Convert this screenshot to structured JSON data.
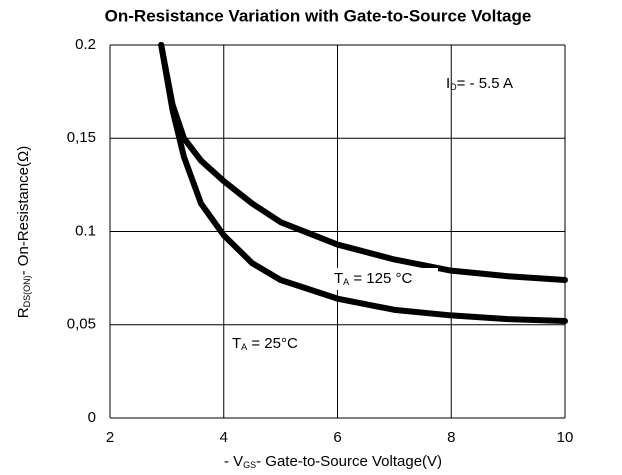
{
  "chart_data": {
    "type": "line",
    "title": "On-Resistance Variation with Gate-to-Source Voltage",
    "x_label": {
      "main": "- V",
      "sub": "GS",
      "rest": "- Gate-to-Source Voltage(V)"
    },
    "y_label": {
      "main": "R",
      "sub": "DS(ON)",
      "rest": "- On-Resistance(Ω)"
    },
    "xlim": [
      2,
      10
    ],
    "ylim": [
      0,
      0.2
    ],
    "xticks": [
      2,
      4,
      6,
      8,
      10
    ],
    "yticks": [
      0,
      {
        "value": 0.05,
        "label": "0,05"
      },
      0.1,
      {
        "value": 0.15,
        "label": "0,15"
      },
      0.2
    ],
    "grid": true,
    "color": "#000000",
    "annotation": {
      "main": "I",
      "sub": "D",
      "rest": "= - 5.5 A"
    },
    "series": [
      {
        "label": {
          "main": "T",
          "sub": "A",
          "rest": " = 25°C"
        },
        "x": [
          2.9,
          3.1,
          3.3,
          3.6,
          4,
          4.5,
          5,
          6,
          7,
          8,
          9,
          10
        ],
        "values": [
          0.2,
          0.165,
          0.14,
          0.115,
          0.098,
          0.083,
          0.074,
          0.064,
          0.058,
          0.055,
          0.053,
          0.052
        ]
      },
      {
        "label": {
          "main": "T",
          "sub": "A",
          "rest": " = 125 °C"
        },
        "x": [
          2.9,
          3.1,
          3.3,
          3.6,
          4,
          4.5,
          5,
          6,
          7,
          8,
          9,
          10
        ],
        "values": [
          0.2,
          0.168,
          0.15,
          0.138,
          0.127,
          0.115,
          0.105,
          0.093,
          0.085,
          0.079,
          0.076,
          0.074
        ]
      }
    ]
  }
}
